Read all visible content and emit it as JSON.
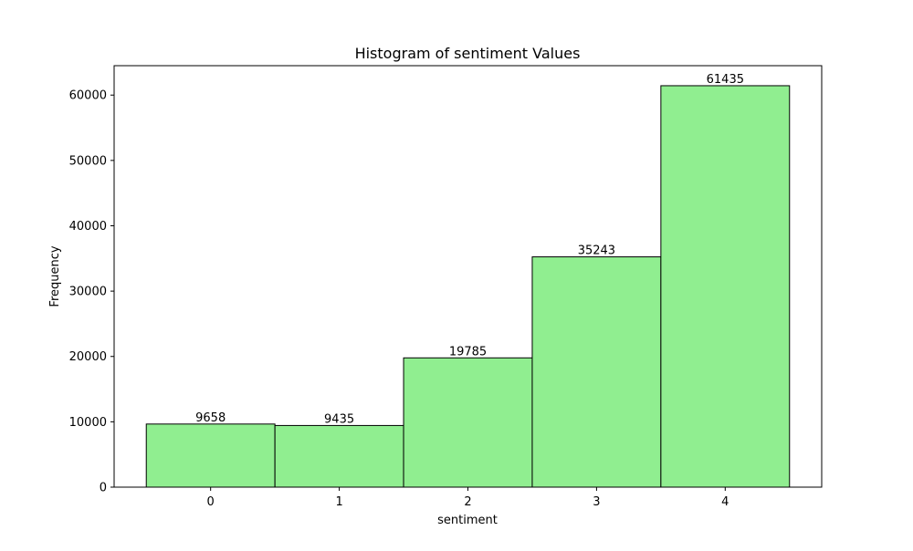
{
  "chart_data": {
    "type": "bar",
    "title": "Histogram of sentiment Values",
    "xlabel": "sentiment",
    "ylabel": "Frequency",
    "categories": [
      "0",
      "1",
      "2",
      "3",
      "4"
    ],
    "values": [
      9658,
      9435,
      19785,
      35243,
      61435
    ],
    "data_labels": [
      "9658",
      "9435",
      "19785",
      "35243",
      "61435"
    ],
    "xlim": [
      -0.75,
      4.75
    ],
    "ylim": [
      0,
      64500
    ],
    "y_ticks": [
      0,
      10000,
      20000,
      30000,
      40000,
      50000,
      60000
    ],
    "y_tick_labels": [
      "0",
      "10000",
      "20000",
      "30000",
      "40000",
      "50000",
      "60000"
    ],
    "grid": false,
    "colors": {
      "bar_fill": "#90ee90",
      "bar_edge": "#000000"
    }
  }
}
